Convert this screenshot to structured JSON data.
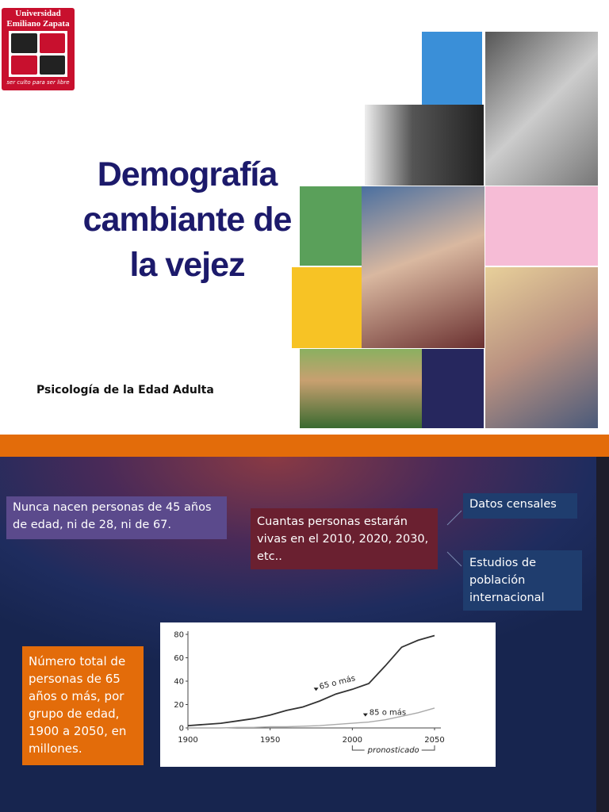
{
  "logo": {
    "name_lines": [
      "Universidad",
      "Emiliano Zapata"
    ],
    "motto": "ser culto para ser libre"
  },
  "slide1": {
    "title_lines": [
      "Demografía",
      "cambiante de",
      "la vejez"
    ],
    "subtitle": "Psicología de la Edad Adulta"
  },
  "slide2": {
    "boxes": {
      "intro": "Nunca nacen personas de 45 años  de edad, ni de 28, ni de 67.",
      "question": "Cuantas personas estarán vivas en el  2010, 2020, 2030, etc..",
      "census": "Datos censales",
      "studies": "Estudios de población internacional",
      "caption": "Número total de personas de 65 años o más, por grupo de edad, 1900 a 2050, en millones."
    },
    "chart": {
      "type": "line",
      "x": [
        1900,
        1910,
        1920,
        1930,
        1940,
        1950,
        1960,
        1970,
        1980,
        1990,
        2000,
        2010,
        2020,
        2030,
        2040,
        2050
      ],
      "series": [
        {
          "name": "65 o más",
          "color": "#333333",
          "values": [
            2,
            3,
            4,
            6,
            8,
            11,
            15,
            18,
            23,
            29,
            33,
            38,
            53,
            69,
            75,
            79
          ]
        },
        {
          "name": "85 o más",
          "color": "#aaaaaa",
          "values": [
            0,
            0,
            0,
            0.5,
            0.5,
            1,
            1,
            1.5,
            2,
            3,
            4,
            5,
            7,
            10,
            13,
            17
          ]
        }
      ],
      "xlim": [
        1900,
        2050
      ],
      "xticks": [
        1900,
        1950,
        2000,
        2050
      ],
      "ylim": [
        0,
        80
      ],
      "yticks": [
        0,
        20,
        40,
        60,
        80
      ],
      "annotation": "pronosticado",
      "annotation_range": [
        2000,
        2050
      ]
    }
  }
}
